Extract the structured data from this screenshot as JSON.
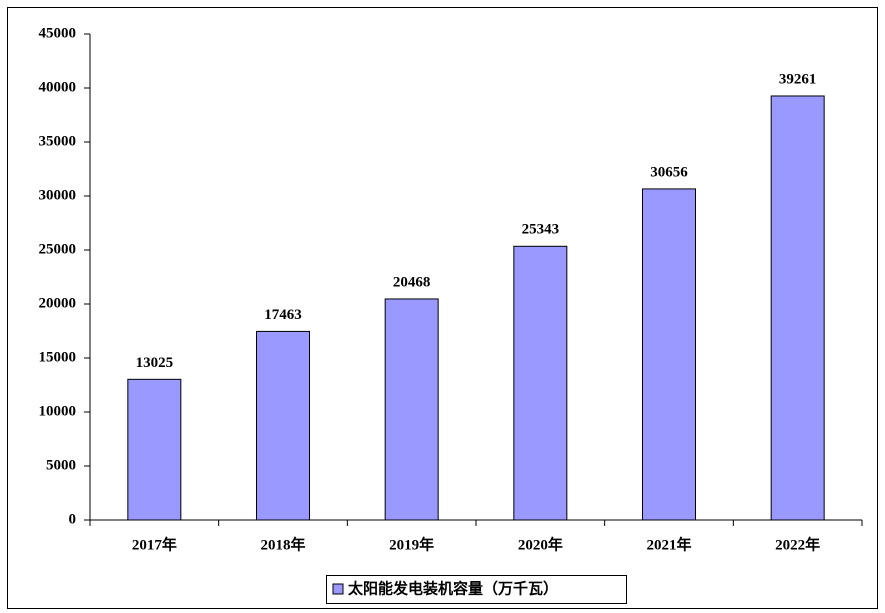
{
  "chart_data": {
    "type": "bar",
    "categories": [
      "2017年",
      "2018年",
      "2019年",
      "2020年",
      "2021年",
      "2022年"
    ],
    "series": [
      {
        "name": "太阳能发电装机容量（万千瓦）",
        "color": "#9999ff",
        "values": [
          13025,
          17463,
          20468,
          25343,
          30656,
          39261
        ]
      }
    ],
    "ylim": [
      0,
      45000
    ],
    "yticks": [
      0,
      5000,
      10000,
      15000,
      20000,
      25000,
      30000,
      35000,
      40000,
      45000
    ],
    "legend": "bottom"
  }
}
